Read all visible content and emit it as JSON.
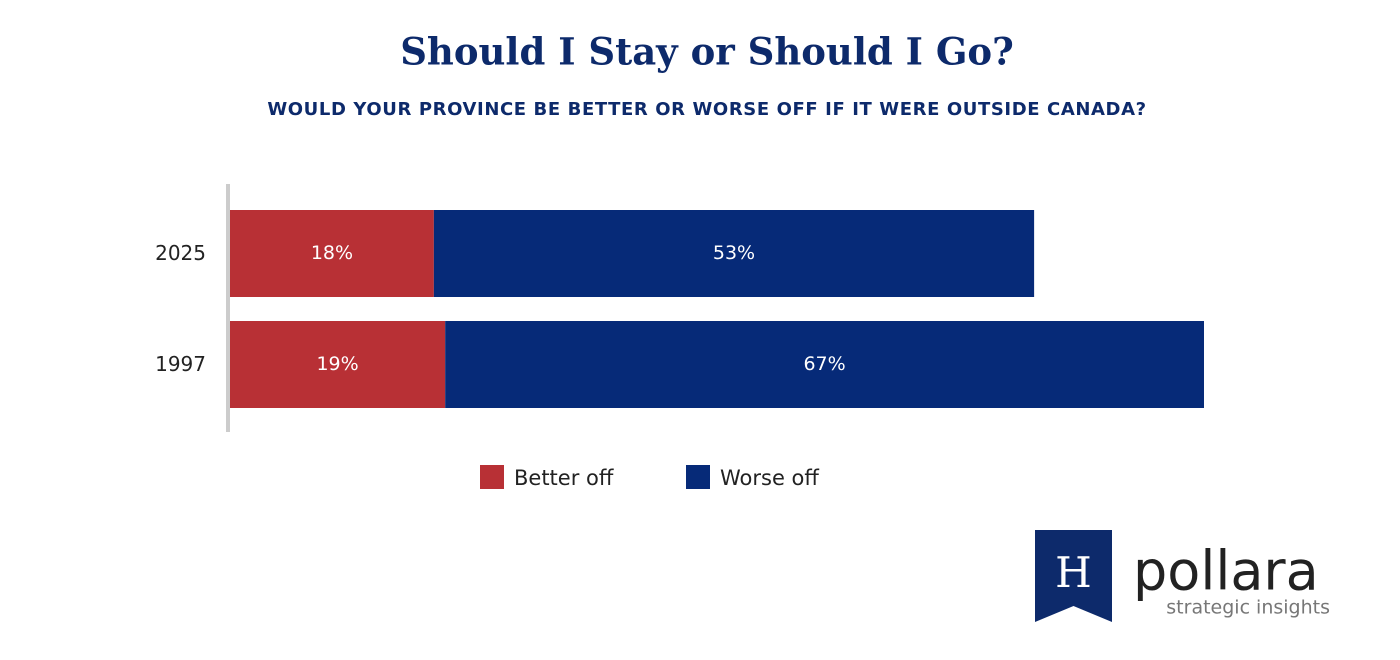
{
  "chart_data": {
    "type": "stacked-bar-horizontal",
    "title": "Should I Stay or Should I Go?",
    "subtitle": "WOULD YOUR PROVINCE BE BETTER OR WORSE OFF IF IT WERE OUTSIDE CANADA?",
    "categories": [
      "2025",
      "1997"
    ],
    "series": [
      {
        "name": "Better off",
        "color": "#b83035",
        "values": [
          18,
          19
        ],
        "value_labels": [
          "18%",
          "19%"
        ]
      },
      {
        "name": "Worse off",
        "color": "#062a78",
        "values": [
          53,
          67
        ],
        "value_labels": [
          "53%",
          "67%"
        ]
      }
    ],
    "legend": "bottom"
  },
  "logo": {
    "mark": "H",
    "name": "pollara",
    "tagline": "strategic insights"
  }
}
